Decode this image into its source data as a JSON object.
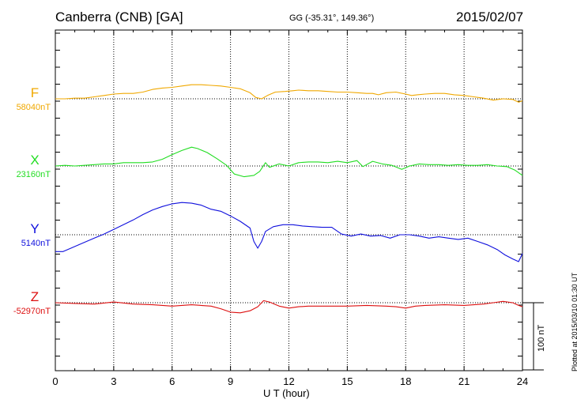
{
  "header": {
    "station": "Canberra (CNB)  [GA]",
    "coords": "GG (-35.31°, 149.36°)",
    "date": "2015/02/07"
  },
  "plotted_stamp": "Plotted at 2015/03/10 01:30 UT",
  "scale_label": "100 nT",
  "chart_data": {
    "type": "line",
    "xlabel": "U T (hour)",
    "xlim": [
      0,
      24
    ],
    "x_ticks": [
      0,
      3,
      6,
      9,
      12,
      15,
      18,
      21,
      24
    ],
    "grid": true,
    "scale_bar_nT": 100,
    "series": [
      {
        "name": "F",
        "baseline_label": "58040nT",
        "color": "#f0a800",
        "points": [
          [
            0,
            0
          ],
          [
            0.5,
            0
          ],
          [
            1,
            1
          ],
          [
            1.5,
            1
          ],
          [
            2,
            3
          ],
          [
            2.5,
            5
          ],
          [
            3,
            7
          ],
          [
            3.5,
            8
          ],
          [
            4,
            8
          ],
          [
            4.5,
            10
          ],
          [
            5,
            14
          ],
          [
            5.5,
            16
          ],
          [
            6,
            17
          ],
          [
            6.5,
            19
          ],
          [
            7,
            21
          ],
          [
            7.5,
            21
          ],
          [
            8,
            20
          ],
          [
            8.5,
            19
          ],
          [
            9,
            17
          ],
          [
            9.5,
            15
          ],
          [
            10,
            9
          ],
          [
            10.3,
            2
          ],
          [
            10.6,
            0
          ],
          [
            10.9,
            5
          ],
          [
            11.3,
            10
          ],
          [
            11.8,
            11
          ],
          [
            12.2,
            12
          ],
          [
            12.5,
            13
          ],
          [
            13,
            12
          ],
          [
            13.5,
            12
          ],
          [
            14,
            11
          ],
          [
            14.5,
            10
          ],
          [
            15,
            10
          ],
          [
            15.5,
            9
          ],
          [
            16,
            8
          ],
          [
            16.3,
            8
          ],
          [
            16.6,
            6
          ],
          [
            17,
            9
          ],
          [
            17.5,
            10
          ],
          [
            18,
            7
          ],
          [
            18.3,
            5
          ],
          [
            18.6,
            6
          ],
          [
            19,
            7
          ],
          [
            19.5,
            8
          ],
          [
            20,
            8
          ],
          [
            20.5,
            6
          ],
          [
            21,
            5
          ],
          [
            21.5,
            3
          ],
          [
            22,
            1
          ],
          [
            22.5,
            -2
          ],
          [
            23,
            0
          ],
          [
            23.5,
            -1
          ],
          [
            23.8,
            -5
          ],
          [
            24,
            -3
          ]
        ]
      },
      {
        "name": "X",
        "baseline_label": "23160nT",
        "color": "#22dd22",
        "points": [
          [
            0,
            0
          ],
          [
            0.5,
            1
          ],
          [
            1,
            0
          ],
          [
            1.5,
            1
          ],
          [
            2,
            2
          ],
          [
            2.5,
            3
          ],
          [
            3,
            3
          ],
          [
            3.5,
            5
          ],
          [
            4,
            5
          ],
          [
            4.5,
            5
          ],
          [
            5,
            6
          ],
          [
            5.5,
            10
          ],
          [
            6,
            17
          ],
          [
            6.5,
            23
          ],
          [
            7,
            28
          ],
          [
            7.3,
            26
          ],
          [
            7.8,
            20
          ],
          [
            8.3,
            11
          ],
          [
            8.8,
            1
          ],
          [
            9.2,
            -12
          ],
          [
            9.7,
            -16
          ],
          [
            10.2,
            -14
          ],
          [
            10.5,
            -8
          ],
          [
            10.8,
            5
          ],
          [
            11,
            -2
          ],
          [
            11.5,
            3
          ],
          [
            12,
            0
          ],
          [
            12.5,
            5
          ],
          [
            13,
            6
          ],
          [
            13.5,
            6
          ],
          [
            14,
            5
          ],
          [
            14.5,
            7
          ],
          [
            15,
            5
          ],
          [
            15.5,
            8
          ],
          [
            15.8,
            -1
          ],
          [
            16.3,
            7
          ],
          [
            16.8,
            3
          ],
          [
            17.3,
            1
          ],
          [
            17.8,
            -5
          ],
          [
            18.2,
            0
          ],
          [
            18.7,
            3
          ],
          [
            19.2,
            2
          ],
          [
            19.7,
            2
          ],
          [
            20.2,
            1
          ],
          [
            20.7,
            2
          ],
          [
            21.2,
            1
          ],
          [
            21.7,
            1
          ],
          [
            22.2,
            2
          ],
          [
            22.7,
            0
          ],
          [
            23.2,
            -1
          ],
          [
            23.6,
            -6
          ],
          [
            24,
            -14
          ]
        ]
      },
      {
        "name": "Y",
        "baseline_label": "5140nT",
        "color": "#1010dd",
        "points": [
          [
            0,
            -25
          ],
          [
            0.4,
            -25
          ],
          [
            0.8,
            -20
          ],
          [
            1.2,
            -15
          ],
          [
            1.6,
            -10
          ],
          [
            2,
            -5
          ],
          [
            2.5,
            1
          ],
          [
            3,
            8
          ],
          [
            3.5,
            15
          ],
          [
            4,
            22
          ],
          [
            4.5,
            30
          ],
          [
            5,
            37
          ],
          [
            5.5,
            42
          ],
          [
            6,
            46
          ],
          [
            6.5,
            48
          ],
          [
            7,
            47
          ],
          [
            7.5,
            44
          ],
          [
            8,
            38
          ],
          [
            8.5,
            35
          ],
          [
            9,
            28
          ],
          [
            9.5,
            20
          ],
          [
            10,
            10
          ],
          [
            10.2,
            -10
          ],
          [
            10.4,
            -20
          ],
          [
            10.6,
            -10
          ],
          [
            10.8,
            5
          ],
          [
            11.2,
            12
          ],
          [
            11.7,
            15
          ],
          [
            12.2,
            15
          ],
          [
            12.7,
            13
          ],
          [
            13.2,
            12
          ],
          [
            13.7,
            11
          ],
          [
            14.2,
            11
          ],
          [
            14.7,
            1
          ],
          [
            15.2,
            -2
          ],
          [
            15.7,
            1
          ],
          [
            16.2,
            -2
          ],
          [
            16.7,
            -1
          ],
          [
            17.2,
            -5
          ],
          [
            17.7,
            0
          ],
          [
            18.2,
            0
          ],
          [
            18.7,
            -2
          ],
          [
            19.2,
            -5
          ],
          [
            19.7,
            -3
          ],
          [
            20.2,
            -5
          ],
          [
            20.7,
            -7
          ],
          [
            21.2,
            -5
          ],
          [
            21.7,
            -10
          ],
          [
            22.2,
            -15
          ],
          [
            22.7,
            -22
          ],
          [
            23.1,
            -30
          ],
          [
            23.5,
            -36
          ],
          [
            23.8,
            -40
          ],
          [
            24,
            -28
          ]
        ]
      },
      {
        "name": "Z",
        "baseline_label": "-52970nT",
        "color": "#dd1010",
        "points": [
          [
            0,
            0
          ],
          [
            1,
            -1
          ],
          [
            2,
            -2
          ],
          [
            3,
            1
          ],
          [
            4,
            -2
          ],
          [
            5,
            -3
          ],
          [
            6,
            -5
          ],
          [
            7,
            -3
          ],
          [
            8,
            -5
          ],
          [
            8.5,
            -9
          ],
          [
            9,
            -14
          ],
          [
            9.5,
            -15
          ],
          [
            10,
            -12
          ],
          [
            10.4,
            -6
          ],
          [
            10.7,
            3
          ],
          [
            11,
            1
          ],
          [
            11.5,
            -5
          ],
          [
            12,
            -8
          ],
          [
            12.5,
            -6
          ],
          [
            13,
            -5
          ],
          [
            14,
            -5
          ],
          [
            15,
            -5
          ],
          [
            16,
            -4
          ],
          [
            17,
            -5
          ],
          [
            17.5,
            -6
          ],
          [
            18,
            -8
          ],
          [
            18.5,
            -5
          ],
          [
            19,
            -4
          ],
          [
            20,
            -3
          ],
          [
            21,
            -4
          ],
          [
            22,
            -2
          ],
          [
            22.5,
            0
          ],
          [
            23,
            2
          ],
          [
            23.5,
            0
          ],
          [
            23.8,
            -4
          ],
          [
            24,
            -6
          ]
        ]
      }
    ]
  }
}
